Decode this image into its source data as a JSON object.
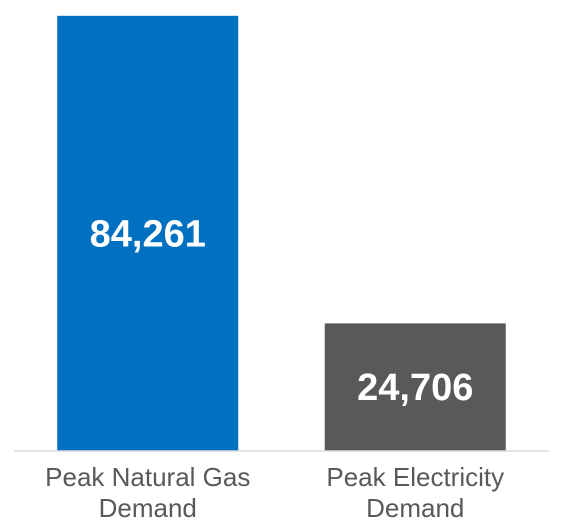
{
  "chart_data": {
    "type": "bar",
    "categories": [
      [
        "Peak Natural Gas",
        "Demand"
      ],
      [
        "Peak Electricity",
        "Demand"
      ]
    ],
    "values": [
      84261,
      24706
    ],
    "data_labels": [
      "84,261",
      "24,706"
    ],
    "colors": [
      "#0070c0",
      "#595959"
    ],
    "title": "",
    "xlabel": "",
    "ylabel": "",
    "ylim": [
      0,
      85000
    ],
    "grid": false,
    "legend": "none"
  }
}
